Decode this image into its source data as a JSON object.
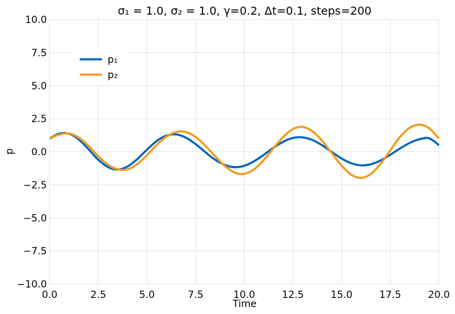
{
  "chart_data": {
    "type": "line",
    "title": "σ₁ = 1.0, σ₂ = 1.0, γ=0.2, Δt=0.1, steps=200",
    "xlabel": "Time",
    "ylabel": "p",
    "xlim": [
      0,
      20
    ],
    "ylim": [
      -10,
      10
    ],
    "xticks": [
      0,
      2.5,
      5,
      7.5,
      10,
      12.5,
      15,
      17.5,
      20
    ],
    "xtick_labels": [
      "0.0",
      "2.5",
      "5.0",
      "7.5",
      "10.0",
      "12.5",
      "15.0",
      "17.5",
      "20.0"
    ],
    "yticks": [
      -10,
      -7.5,
      -5,
      -2.5,
      0,
      2.5,
      5,
      7.5,
      10
    ],
    "ytick_labels": [
      "−10.0",
      "−7.5",
      "−5.0",
      "−2.5",
      "0.0",
      "2.5",
      "5.0",
      "7.5",
      "10.0"
    ],
    "grid": true,
    "legend_position": "upper-left",
    "series": [
      {
        "name": "p₁",
        "color": "#0066bb",
        "x": [
          0,
          0.5,
          1,
          1.5,
          2,
          2.5,
          3,
          3.5,
          4,
          4.5,
          5,
          5.5,
          6,
          6.5,
          7,
          7.5,
          8,
          8.5,
          9,
          9.5,
          10,
          10.5,
          11,
          11.5,
          12,
          12.5,
          13,
          13.5,
          14,
          14.5,
          15,
          15.5,
          16,
          16.5,
          17,
          17.5,
          18,
          18.5,
          19,
          19.5,
          20
        ],
        "y": [
          1.0,
          1.38,
          1.36,
          0.93,
          0.19,
          -0.6,
          -1.16,
          -1.35,
          -1.12,
          -0.56,
          0.16,
          0.81,
          1.22,
          1.31,
          1.07,
          0.58,
          -0.03,
          -0.6,
          -1.0,
          -1.17,
          -1.06,
          -0.72,
          -0.23,
          0.31,
          0.76,
          1.05,
          1.09,
          0.89,
          0.49,
          -0.02,
          -0.51,
          -0.87,
          -1.03,
          -0.95,
          -0.66,
          -0.23,
          0.25,
          0.67,
          0.95,
          1.02,
          0.5
        ]
      },
      {
        "name": "p₂",
        "color": "#f39a1c",
        "x": [
          0,
          0.5,
          1,
          1.5,
          2,
          2.5,
          3,
          3.5,
          4,
          4.5,
          5,
          5.5,
          6,
          6.5,
          7,
          7.5,
          8,
          8.5,
          9,
          9.5,
          10,
          10.5,
          11,
          11.5,
          12,
          12.5,
          13,
          13.5,
          14,
          14.5,
          15,
          15.5,
          16,
          16.5,
          17,
          17.5,
          18,
          18.5,
          19,
          19.5,
          20
        ],
        "y": [
          1.0,
          1.3,
          1.38,
          1.07,
          0.44,
          -0.34,
          -0.98,
          -1.33,
          -1.33,
          -0.94,
          -0.26,
          0.51,
          1.14,
          1.49,
          1.49,
          1.12,
          0.46,
          -0.33,
          -1.07,
          -1.57,
          -1.67,
          -1.33,
          -0.63,
          0.27,
          1.12,
          1.72,
          1.88,
          1.55,
          0.83,
          -0.1,
          -1.05,
          -1.74,
          -1.98,
          -1.68,
          -0.92,
          0.1,
          1.12,
          1.81,
          2.05,
          1.78,
          1.0
        ]
      }
    ]
  }
}
